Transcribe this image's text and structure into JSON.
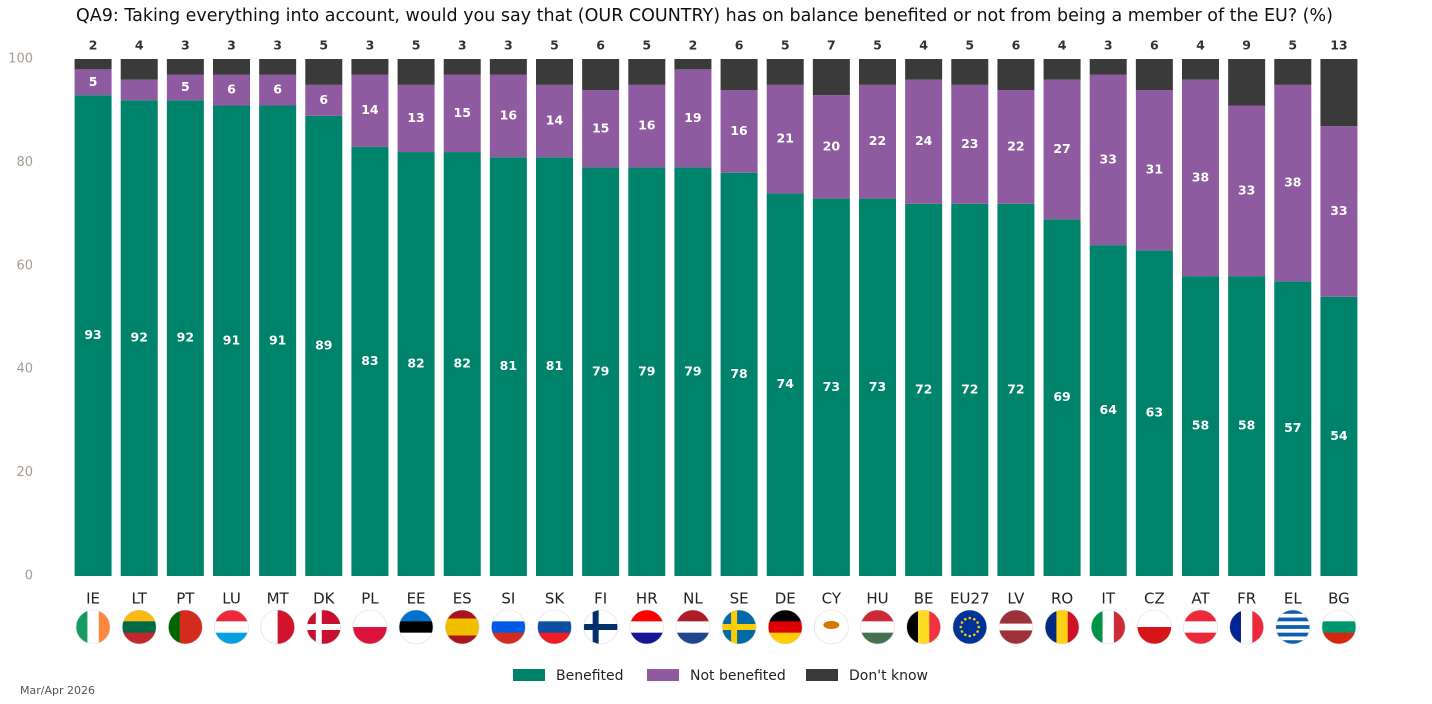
{
  "chart_data": {
    "type": "stacked_bar",
    "title": "QA9: Taking everything into account, would you say that (OUR COUNTRY) has on balance benefited or not from being a member of the EU? (%)",
    "footnote": "Mar/Apr 2026",
    "categories": [
      "IE",
      "LT",
      "PT",
      "LU",
      "MT",
      "DK",
      "PL",
      "EE",
      "ES",
      "SI",
      "SK",
      "FI",
      "HR",
      "NL",
      "SE",
      "DE",
      "CY",
      "HU",
      "BE",
      "EU27",
      "LV",
      "RO",
      "IT",
      "CZ",
      "AT",
      "FR",
      "EL",
      "BG"
    ],
    "series": [
      {
        "name": "Benefited",
        "color": "#00836b",
        "values": [
          93,
          92,
          92,
          91,
          91,
          89,
          83,
          82,
          82,
          81,
          81,
          79,
          79,
          79,
          78,
          74,
          73,
          73,
          72,
          72,
          72,
          69,
          64,
          63,
          58,
          58,
          57,
          54
        ]
      },
      {
        "name": "Not benefited",
        "color": "#8e5ba0",
        "values": [
          5,
          4,
          5,
          6,
          6,
          6,
          14,
          13,
          15,
          16,
          14,
          15,
          16,
          19,
          16,
          21,
          20,
          22,
          24,
          23,
          22,
          27,
          33,
          31,
          38,
          33,
          38,
          33
        ],
        "value_labels": [
          "5",
          null,
          "5",
          "6",
          "6",
          "6",
          "14",
          "13",
          "15",
          "16",
          "14",
          "15",
          "16",
          "19",
          "16",
          "21",
          "20",
          "22",
          "24",
          "23",
          "22",
          "27",
          "33",
          "31",
          "38",
          "33",
          "38",
          "33"
        ]
      },
      {
        "name": "Don't know",
        "color": "#3a3a3a",
        "values": [
          2,
          4,
          3,
          3,
          3,
          5,
          3,
          5,
          3,
          3,
          5,
          6,
          5,
          2,
          6,
          5,
          7,
          5,
          4,
          5,
          6,
          4,
          3,
          6,
          4,
          9,
          5,
          13
        ]
      }
    ],
    "ylim": [
      0,
      100
    ],
    "yticks": [
      0,
      20,
      40,
      60,
      80,
      100
    ],
    "grid": false
  }
}
